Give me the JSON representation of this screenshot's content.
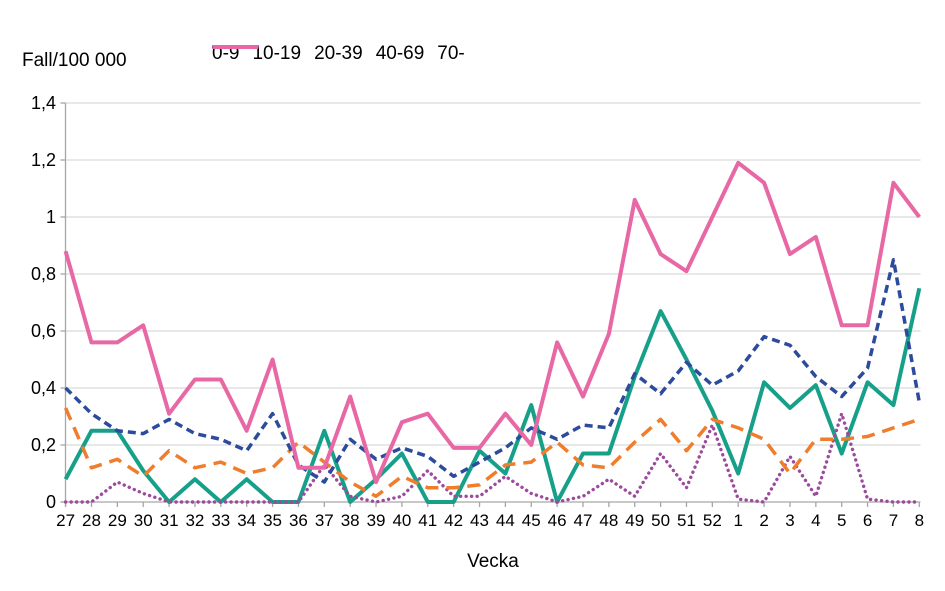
{
  "chart_data": {
    "type": "line",
    "title": "Fall/100 000",
    "ylabel": "Fall/100 000",
    "xlabel": "Vecka",
    "ylim": [
      0,
      1.4
    ],
    "y_tick_step": 0.2,
    "y_tick_labels": [
      "0",
      "0,2",
      "0,4",
      "0,6",
      "0,8",
      "1",
      "1,2",
      "1,4"
    ],
    "grid": "horizontal",
    "legend_position": "top",
    "categories": [
      "27",
      "28",
      "29",
      "30",
      "31",
      "32",
      "33",
      "34",
      "35",
      "36",
      "37",
      "38",
      "39",
      "40",
      "41",
      "42",
      "43",
      "44",
      "45",
      "46",
      "47",
      "48",
      "49",
      "50",
      "51",
      "52",
      "1",
      "2",
      "3",
      "4",
      "5",
      "6",
      "7",
      "8"
    ],
    "series": [
      {
        "name": "0-9",
        "color": "#17A089",
        "style": "solid",
        "values": [
          0.08,
          0.25,
          0.25,
          0.11,
          0,
          0.08,
          0,
          0.08,
          0,
          0,
          0.25,
          0,
          0.08,
          0.17,
          0,
          0,
          0.18,
          0.1,
          0.34,
          0,
          0.17,
          0.17,
          0.44,
          0.67,
          0.5,
          0.32,
          0.1,
          0.42,
          0.33,
          0.41,
          0.17,
          0.42,
          0.34,
          0.75
        ]
      },
      {
        "name": "10-19",
        "color": "#9C4A9C",
        "style": "dotted",
        "values": [
          0,
          0,
          0.07,
          0.03,
          0,
          0,
          0,
          0,
          0,
          0,
          0.13,
          0.02,
          0,
          0.02,
          0.11,
          0.02,
          0.02,
          0.09,
          0.03,
          0,
          0.02,
          0.08,
          0.02,
          0.17,
          0.05,
          0.27,
          0.01,
          0,
          0.16,
          0.02,
          0.31,
          0.01,
          0,
          0
        ]
      },
      {
        "name": "20-39",
        "color": "#EF7D2B",
        "style": "long-dash",
        "values": [
          0.33,
          0.12,
          0.15,
          0.09,
          0.18,
          0.12,
          0.14,
          0.1,
          0.12,
          0.21,
          0.14,
          0.07,
          0.02,
          0.09,
          0.05,
          0.05,
          0.06,
          0.13,
          0.14,
          0.21,
          0.13,
          0.12,
          0.21,
          0.29,
          0.18,
          0.29,
          0.26,
          0.22,
          0.1,
          0.22,
          0.22,
          0.23,
          0.26,
          0.29
        ]
      },
      {
        "name": "40-69",
        "color": "#2C4B9D",
        "style": "dash",
        "values": [
          0.4,
          0.31,
          0.25,
          0.24,
          0.29,
          0.24,
          0.22,
          0.18,
          0.31,
          0.13,
          0.07,
          0.22,
          0.15,
          0.19,
          0.16,
          0.09,
          0.14,
          0.19,
          0.26,
          0.22,
          0.27,
          0.26,
          0.45,
          0.38,
          0.49,
          0.41,
          0.46,
          0.58,
          0.55,
          0.44,
          0.37,
          0.47,
          0.85,
          0.35
        ]
      },
      {
        "name": "70-",
        "color": "#E868A5",
        "style": "solid",
        "values": [
          0.88,
          0.56,
          0.56,
          0.62,
          0.31,
          0.43,
          0.43,
          0.25,
          0.5,
          0.12,
          0.12,
          0.37,
          0.07,
          0.28,
          0.31,
          0.19,
          0.19,
          0.31,
          0.2,
          0.56,
          0.37,
          0.59,
          1.06,
          0.87,
          0.81,
          1.0,
          1.19,
          1.12,
          0.87,
          0.93,
          0.62,
          0.62,
          1.12,
          1.0
        ]
      }
    ],
    "colors": {
      "gridline": "#D9D9D9",
      "axis": "#A6A6A6",
      "text": "#000000"
    }
  }
}
